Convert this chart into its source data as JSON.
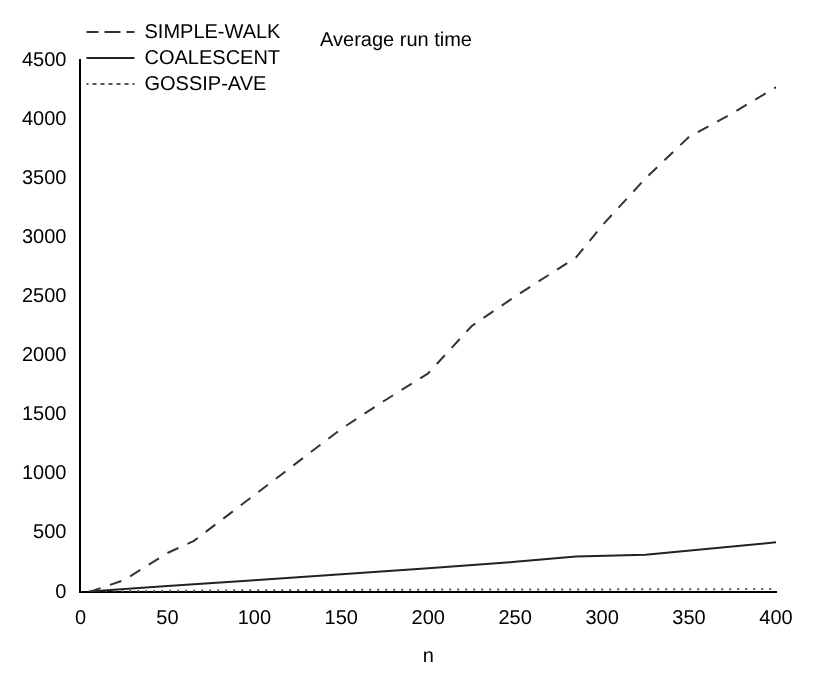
{
  "chart_data": {
    "type": "line",
    "title": "Average run time",
    "xlabel": "n",
    "xlim": [
      0,
      400
    ],
    "xticks": [
      0,
      50,
      100,
      150,
      200,
      250,
      300,
      350,
      400
    ],
    "ylim": [
      0,
      4500
    ],
    "yticks": [
      0,
      500,
      1000,
      1500,
      2000,
      2500,
      3000,
      3500,
      4000,
      4500
    ],
    "grid": false,
    "legend": "top left",
    "marker": "none",
    "series": [
      {
        "name": "SIMPLE-WALK",
        "color": "#333333",
        "line_style": "dashed",
        "x": [
          5,
          25,
          50,
          65,
          100,
          150,
          175,
          200,
          225,
          250,
          285,
          300,
          325,
          350,
          375,
          400
        ],
        "values": [
          0,
          100,
          330,
          430,
          820,
          1380,
          1620,
          1850,
          2250,
          2500,
          2830,
          3100,
          3500,
          3850,
          4050,
          4270
        ]
      },
      {
        "name": "COALESCENT",
        "color": "#222222",
        "line_style": "solid",
        "x": [
          5,
          50,
          100,
          150,
          200,
          250,
          285,
          325,
          400
        ],
        "values": [
          5,
          50,
          100,
          150,
          200,
          255,
          300,
          315,
          420
        ]
      },
      {
        "name": "GOSSIP-AVE",
        "color": "#555555",
        "line_style": "dotted",
        "x": [
          5,
          100,
          200,
          300,
          400
        ],
        "values": [
          5,
          15,
          20,
          22,
          25
        ]
      }
    ]
  }
}
